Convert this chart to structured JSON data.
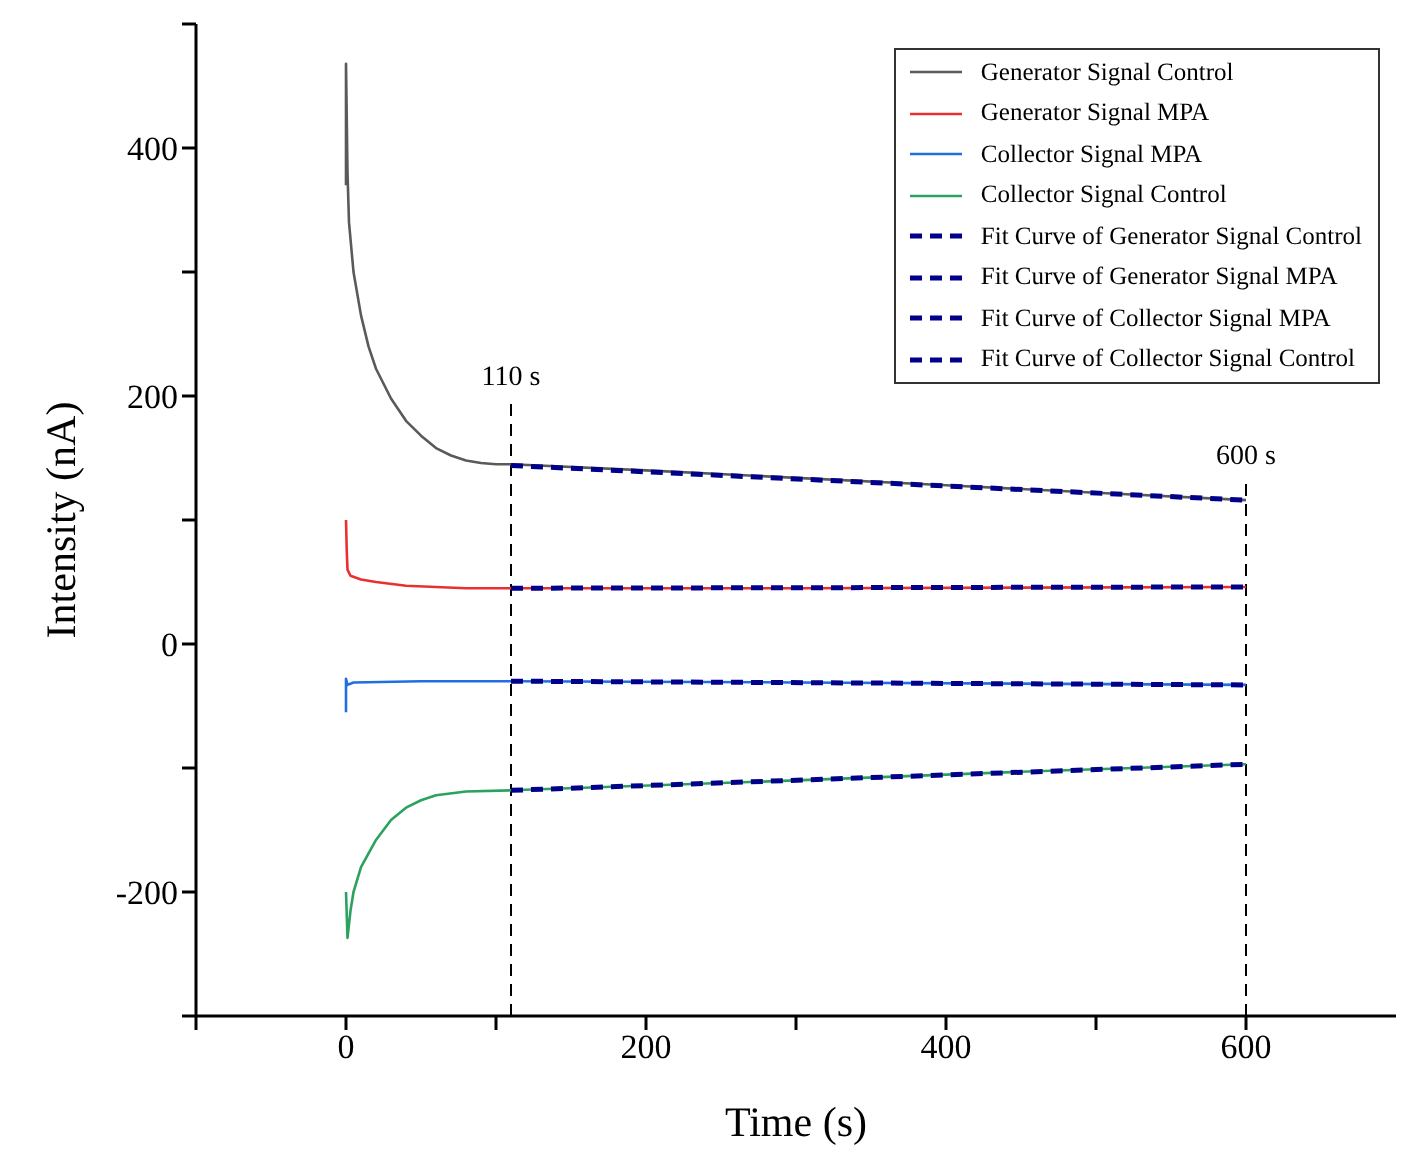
{
  "chart_data": {
    "type": "line",
    "xlabel": "Time (s)",
    "ylabel": "Intensity (nA)",
    "xlim": [
      -100,
      700
    ],
    "ylim": [
      -300,
      500
    ],
    "xticks": [
      {
        "value": -100,
        "label": null
      },
      0,
      {
        "value": 100,
        "label": null
      },
      200,
      {
        "value": 300,
        "label": null
      },
      400,
      {
        "value": 500,
        "label": null
      },
      600
    ],
    "yticks": [
      {
        "value": -300,
        "label": null
      },
      -200,
      {
        "value": -100,
        "label": null
      },
      0,
      {
        "value": 100,
        "label": null
      },
      200,
      {
        "value": 300,
        "label": null
      },
      400,
      {
        "value": 500,
        "label": null
      }
    ],
    "grid": false,
    "legend": "top right",
    "marker": "none",
    "series": [
      {
        "name": "Generator Signal Control",
        "color": "#5a5a5a",
        "line_style": "solid",
        "x": [
          0,
          0,
          1,
          2,
          5,
          10,
          15,
          20,
          30,
          40,
          50,
          60,
          70,
          80,
          90,
          100,
          110,
          200,
          300,
          400,
          500,
          600
        ],
        "values": [
          370,
          468,
          380,
          340,
          300,
          265,
          240,
          222,
          198,
          180,
          168,
          158,
          152,
          148,
          146,
          145,
          145,
          140,
          134,
          128,
          122,
          116
        ]
      },
      {
        "name": "Generator Signal MPA",
        "color": "#e8312f",
        "line_style": "solid",
        "x": [
          0,
          0.5,
          1,
          3,
          10,
          20,
          40,
          60,
          80,
          110,
          300,
          600
        ],
        "values": [
          100,
          75,
          60,
          55,
          52,
          50,
          47,
          46,
          45,
          45,
          45,
          46
        ]
      },
      {
        "name": "Collector Signal MPA",
        "color": "#1f6fe0",
        "line_style": "solid",
        "x": [
          0,
          0,
          1,
          5,
          50,
          110,
          300,
          600
        ],
        "values": [
          -55,
          -28,
          -33,
          -31,
          -30,
          -30,
          -31,
          -33
        ]
      },
      {
        "name": "Collector Signal Control",
        "color": "#2ca25f",
        "line_style": "solid",
        "x": [
          0,
          1,
          3,
          5,
          10,
          20,
          30,
          40,
          50,
          60,
          80,
          110,
          300,
          450,
          600
        ],
        "values": [
          -200,
          -237,
          -215,
          -200,
          -180,
          -158,
          -142,
          -132,
          -126,
          -122,
          -119,
          -118,
          -110,
          -103,
          -97
        ]
      },
      {
        "name": "Fit Curve of Generator Signal Control",
        "color": "#00008b",
        "line_style": "dashed",
        "x": [
          110,
          600
        ],
        "values": [
          144,
          116
        ]
      },
      {
        "name": "Fit Curve of Generator Signal MPA",
        "color": "#00008b",
        "line_style": "dashed",
        "x": [
          110,
          600
        ],
        "values": [
          45,
          46
        ]
      },
      {
        "name": "Fit Curve of Collector Signal MPA",
        "color": "#00008b",
        "line_style": "dashed",
        "x": [
          110,
          600
        ],
        "values": [
          -30,
          -33
        ]
      },
      {
        "name": "Fit Curve of Collector Signal Control",
        "color": "#00008b",
        "line_style": "dashed",
        "x": [
          110,
          600
        ],
        "values": [
          -118,
          -97
        ]
      }
    ],
    "ref_lines": [
      {
        "axis": "x",
        "value": 110,
        "label": "110 s",
        "color": "#000000",
        "line_style": "dashed"
      },
      {
        "axis": "x",
        "value": 600,
        "label": "600 s",
        "color": "#000000",
        "line_style": "dashed"
      }
    ]
  }
}
